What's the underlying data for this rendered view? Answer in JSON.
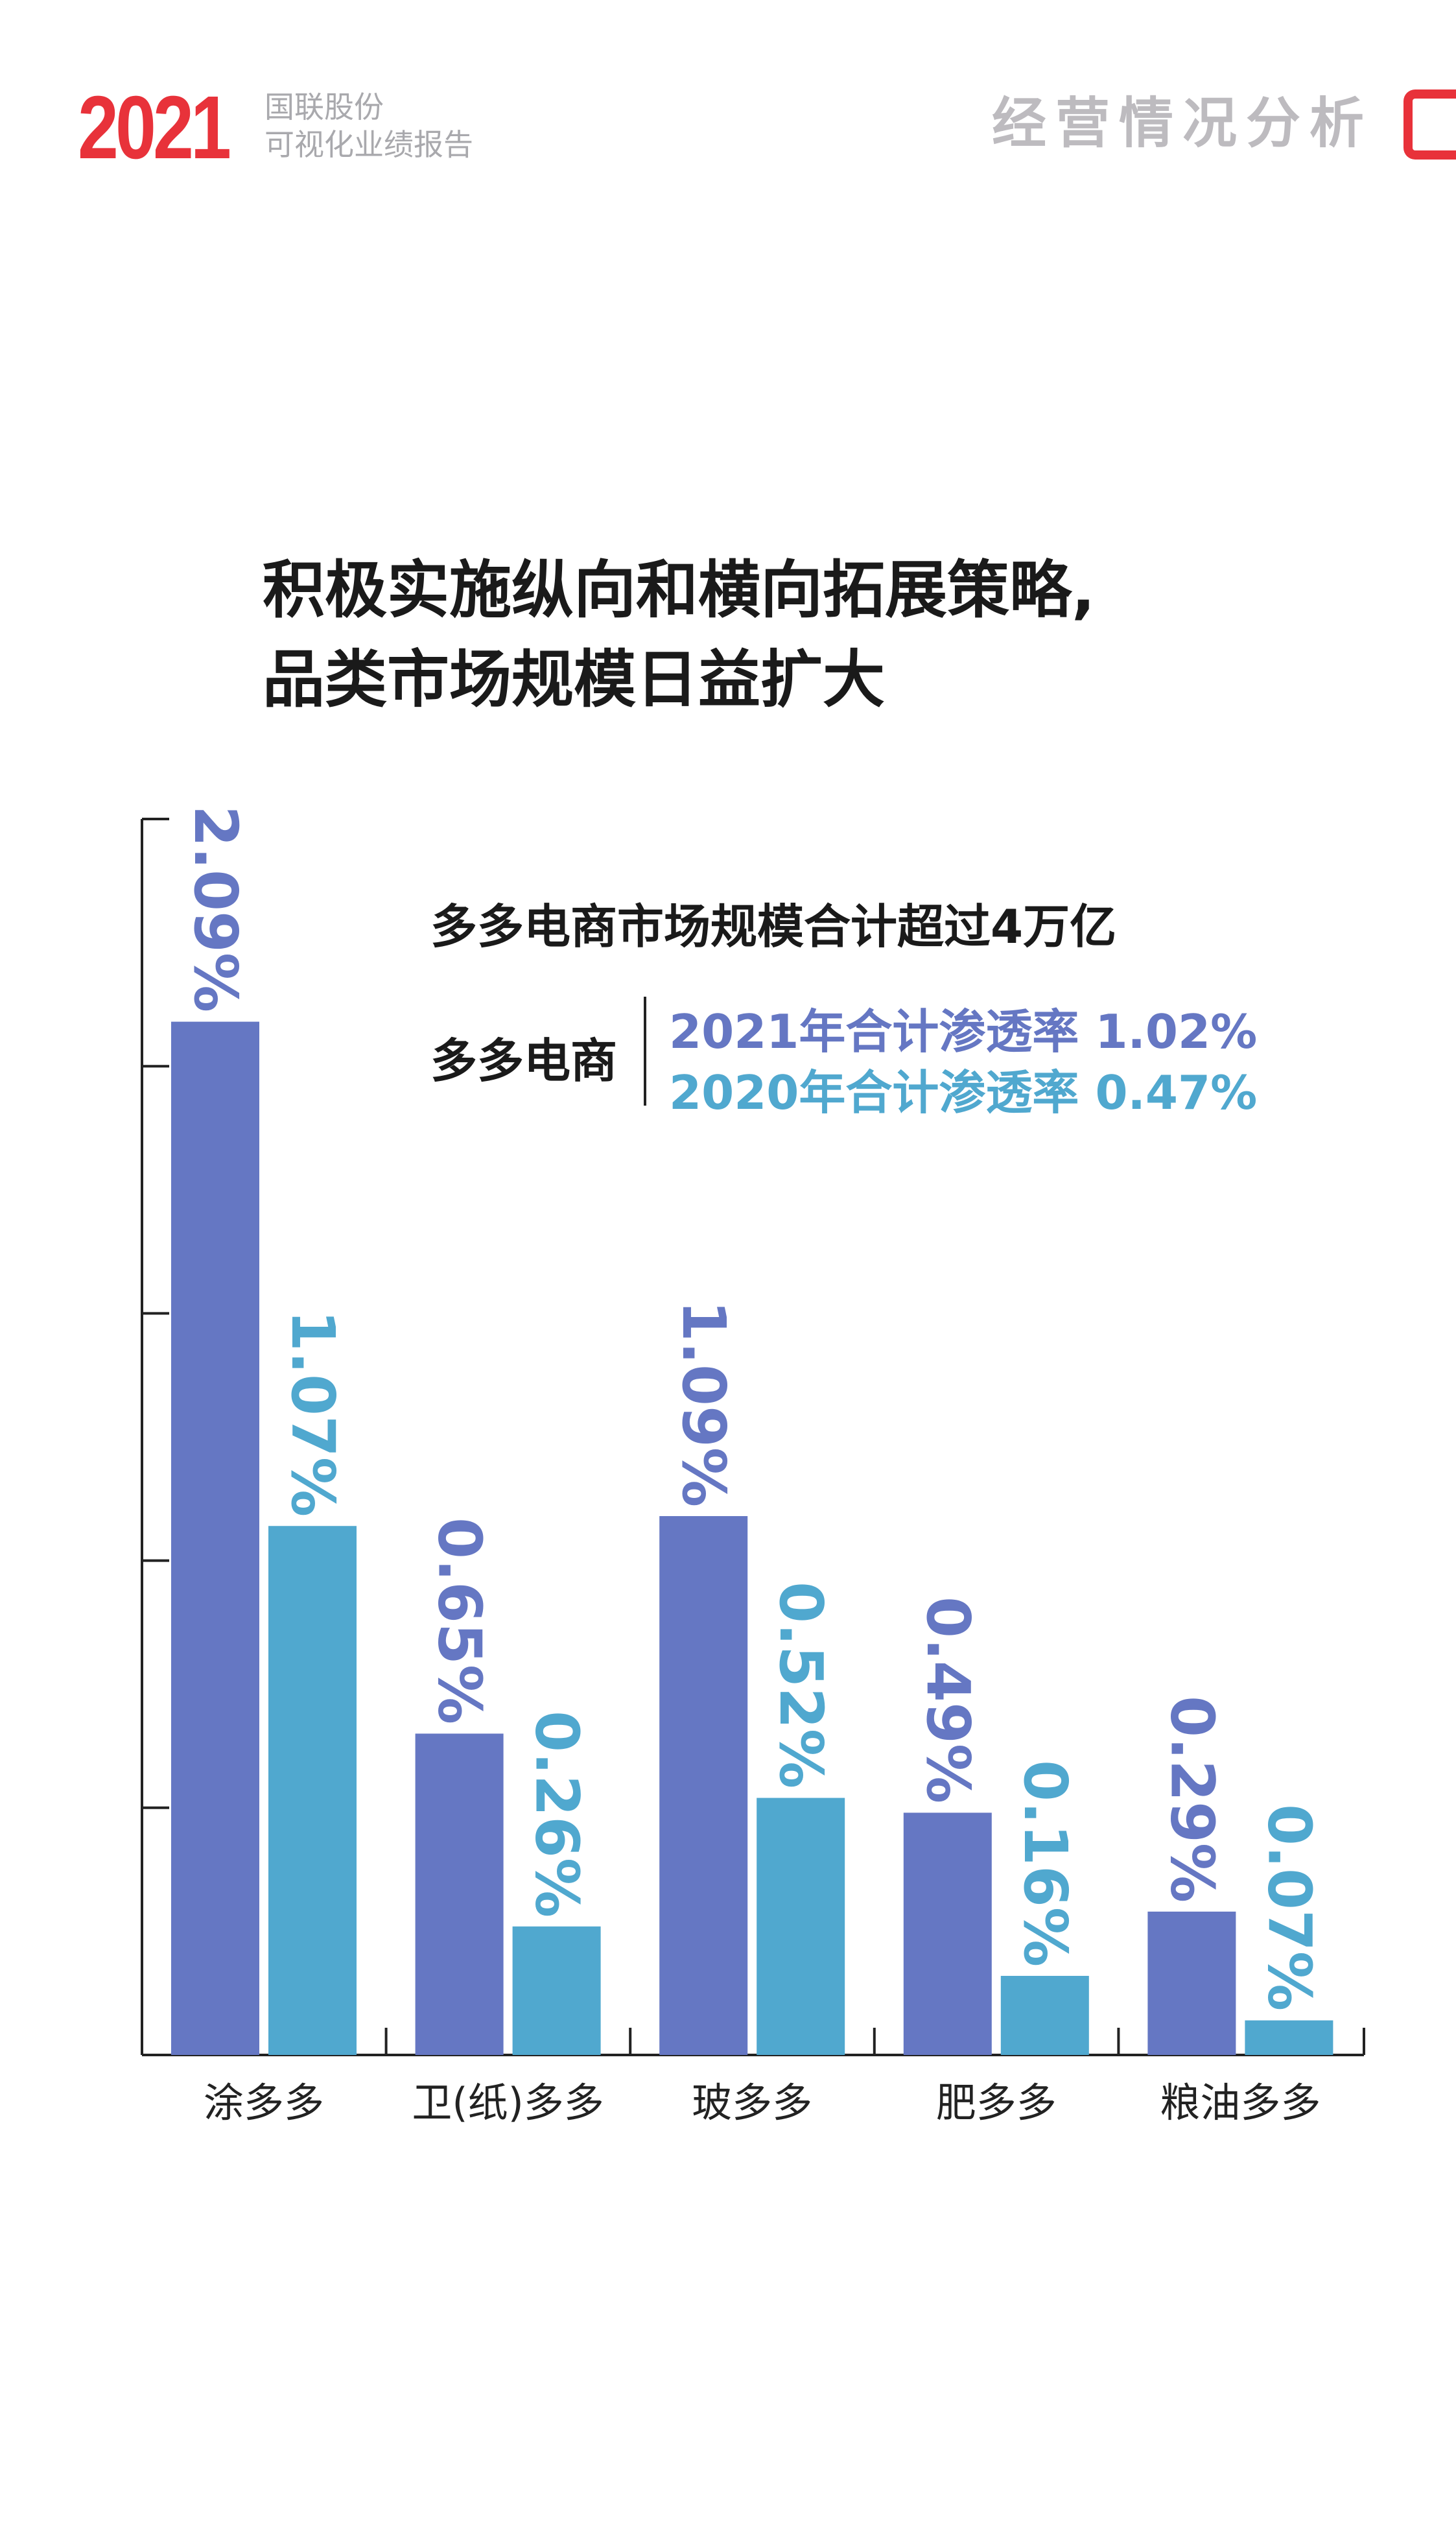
{
  "header": {
    "year": "2021",
    "company": "国联股份",
    "report": "可视化业绩报告",
    "section": "经营情况分析"
  },
  "title": {
    "line1": "积极实施纵向和横向拓展策略,",
    "line2": "品类市场规模日益扩大"
  },
  "legend": {
    "headline": "多多电商市场规模合计超过4万亿",
    "name": "多多电商",
    "s2021": "2021年合计渗透率 1.02%",
    "s2020": "2020年合计渗透率 0.47%"
  },
  "colors": {
    "s2021": "#6577c3",
    "s2020": "#50a8cf"
  },
  "chart_data": {
    "type": "bar",
    "title": "多多电商市场规模合计超过4万亿",
    "categories": [
      "涂多多",
      "卫(纸)多多",
      "玻多多",
      "肥多多",
      "粮油多多"
    ],
    "series": [
      {
        "name": "2021年",
        "values": [
          2.09,
          0.65,
          1.09,
          0.49,
          0.29
        ],
        "labels": [
          "2.09%",
          "0.65%",
          "1.09%",
          "0.49%",
          "0.29%"
        ]
      },
      {
        "name": "2020年",
        "values": [
          1.07,
          0.26,
          0.52,
          0.16,
          0.07
        ],
        "labels": [
          "1.07%",
          "0.26%",
          "0.52%",
          "0.16%",
          "0.07%"
        ]
      }
    ],
    "ylim": [
      0,
      2.5
    ],
    "ytick_step": 0.5,
    "unit": "%",
    "grid": false
  }
}
